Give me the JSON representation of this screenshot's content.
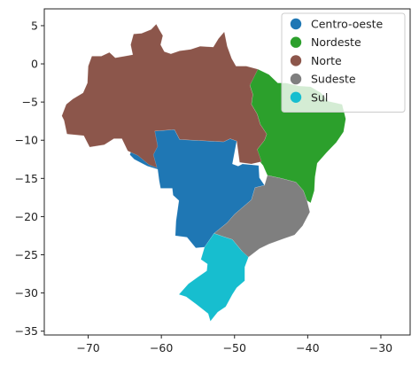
{
  "chart_data": {
    "type": "map",
    "title": "",
    "xlabel": "",
    "ylabel": "",
    "xlim": [
      -76,
      -26
    ],
    "ylim": [
      -35.5,
      7.2
    ],
    "x_ticks": [
      -70,
      -60,
      -50,
      -40,
      -30
    ],
    "y_ticks": [
      5,
      0,
      -5,
      -10,
      -15,
      -20,
      -25,
      -30,
      -35
    ],
    "x_tick_labels": [
      "−70",
      "−60",
      "−50",
      "−40",
      "−30"
    ],
    "y_tick_labels": [
      "5",
      "0",
      "−5",
      "−10",
      "−15",
      "−20",
      "−25",
      "−30",
      "−35"
    ],
    "grid": false,
    "legend_position": "top-right",
    "regions": [
      {
        "name": "Centro-oeste",
        "color": "#1f77b4",
        "polygons": [
          [
            [
              -60.9,
              -8.8
            ],
            [
              -58.2,
              -8.6
            ],
            [
              -57.5,
              -9.9
            ],
            [
              -51.5,
              -10.2
            ],
            [
              -50.6,
              -9.8
            ],
            [
              -49.7,
              -10.1
            ],
            [
              -50.3,
              -13.1
            ],
            [
              -49.5,
              -13.4
            ],
            [
              -48.9,
              -13.1
            ],
            [
              -46.7,
              -13.3
            ],
            [
              -46.6,
              -14.9
            ],
            [
              -45.9,
              -15.9
            ],
            [
              -47.2,
              -16.2
            ],
            [
              -47.7,
              -17.8
            ],
            [
              -50.0,
              -19.7
            ],
            [
              -51.0,
              -20.8
            ],
            [
              -52.8,
              -22.2
            ],
            [
              -54.1,
              -24.0
            ],
            [
              -55.3,
              -24.1
            ],
            [
              -56.5,
              -22.7
            ],
            [
              -58.1,
              -22.5
            ],
            [
              -58.0,
              -20.6
            ],
            [
              -57.6,
              -17.9
            ],
            [
              -58.4,
              -17.2
            ],
            [
              -58.5,
              -16.3
            ],
            [
              -60.1,
              -16.3
            ],
            [
              -60.3,
              -15.3
            ],
            [
              -60.5,
              -13.8
            ],
            [
              -61.9,
              -13.4
            ],
            [
              -62.7,
              -13.0
            ],
            [
              -63.7,
              -12.5
            ],
            [
              -64.3,
              -11.9
            ],
            [
              -63.8,
              -10.5
            ],
            [
              -62.5,
              -10.0
            ],
            [
              -61.7,
              -9.5
            ]
          ]
        ]
      },
      {
        "name": "Nordeste",
        "color": "#2ca02c",
        "polygons": [
          [
            [
              -48.3,
              -1.0
            ],
            [
              -46.8,
              -0.7
            ],
            [
              -45.3,
              -1.4
            ],
            [
              -44.1,
              -2.5
            ],
            [
              -43.0,
              -2.5
            ],
            [
              -41.2,
              -2.9
            ],
            [
              -39.6,
              -3.0
            ],
            [
              -38.2,
              -3.8
            ],
            [
              -37.2,
              -4.9
            ],
            [
              -35.3,
              -5.3
            ],
            [
              -34.8,
              -7.2
            ],
            [
              -35.1,
              -8.9
            ],
            [
              -36.1,
              -10.3
            ],
            [
              -37.4,
              -11.6
            ],
            [
              -38.7,
              -13.0
            ],
            [
              -39.0,
              -14.8
            ],
            [
              -39.1,
              -16.6
            ],
            [
              -39.6,
              -18.2
            ],
            [
              -40.1,
              -17.9
            ],
            [
              -40.6,
              -16.6
            ],
            [
              -41.6,
              -15.5
            ],
            [
              -43.6,
              -15.0
            ],
            [
              -45.5,
              -14.6
            ],
            [
              -46.1,
              -13.3
            ],
            [
              -46.7,
              -12.6
            ],
            [
              -46.9,
              -11.2
            ],
            [
              -45.9,
              -10.0
            ],
            [
              -45.6,
              -9.2
            ],
            [
              -46.5,
              -7.9
            ],
            [
              -46.9,
              -6.6
            ],
            [
              -47.7,
              -5.3
            ],
            [
              -47.5,
              -4.0
            ],
            [
              -47.9,
              -2.8
            ]
          ]
        ]
      },
      {
        "name": "Norte",
        "color": "#8c564b",
        "polygons": [
          [
            [
              -73.3,
              -7.4
            ],
            [
              -72.9,
              -9.2
            ],
            [
              -70.6,
              -9.4
            ],
            [
              -69.8,
              -10.9
            ],
            [
              -67.8,
              -10.6
            ],
            [
              -66.5,
              -9.8
            ],
            [
              -65.4,
              -9.8
            ],
            [
              -64.6,
              -11.4
            ],
            [
              -63.2,
              -12.0
            ],
            [
              -61.7,
              -13.2
            ],
            [
              -60.6,
              -13.6
            ],
            [
              -61.1,
              -11.9
            ],
            [
              -60.5,
              -10.8
            ],
            [
              -60.9,
              -8.8
            ],
            [
              -58.2,
              -8.6
            ],
            [
              -57.5,
              -9.9
            ],
            [
              -51.5,
              -10.2
            ],
            [
              -50.6,
              -9.8
            ],
            [
              -49.7,
              -10.1
            ],
            [
              -49.3,
              -12.9
            ],
            [
              -47.7,
              -13.1
            ],
            [
              -46.3,
              -12.8
            ],
            [
              -46.9,
              -11.2
            ],
            [
              -45.9,
              -10.0
            ],
            [
              -45.6,
              -9.2
            ],
            [
              -46.5,
              -7.9
            ],
            [
              -46.9,
              -6.6
            ],
            [
              -47.7,
              -5.3
            ],
            [
              -47.5,
              -4.0
            ],
            [
              -47.9,
              -2.8
            ],
            [
              -46.8,
              -0.7
            ],
            [
              -48.4,
              -0.3
            ],
            [
              -49.8,
              -0.3
            ],
            [
              -50.4,
              0.7
            ],
            [
              -51.0,
              2.3
            ],
            [
              -51.4,
              4.2
            ],
            [
              -52.2,
              3.3
            ],
            [
              -52.9,
              2.2
            ],
            [
              -54.7,
              2.3
            ],
            [
              -56.0,
              1.9
            ],
            [
              -57.5,
              1.7
            ],
            [
              -58.7,
              1.3
            ],
            [
              -59.6,
              1.6
            ],
            [
              -60.1,
              2.5
            ],
            [
              -59.8,
              3.7
            ],
            [
              -60.3,
              4.5
            ],
            [
              -60.7,
              5.2
            ],
            [
              -61.4,
              4.5
            ],
            [
              -62.7,
              4.0
            ],
            [
              -63.8,
              3.9
            ],
            [
              -64.2,
              2.5
            ],
            [
              -63.9,
              1.2
            ],
            [
              -65.0,
              1.0
            ],
            [
              -66.3,
              0.8
            ],
            [
              -67.1,
              1.5
            ],
            [
              -68.2,
              1.0
            ],
            [
              -69.5,
              1.0
            ],
            [
              -70.0,
              -0.3
            ],
            [
              -70.1,
              -2.5
            ],
            [
              -70.7,
              -3.8
            ],
            [
              -72.1,
              -4.6
            ],
            [
              -73.0,
              -5.3
            ],
            [
              -73.6,
              -6.8
            ]
          ]
        ]
      },
      {
        "name": "Sudeste",
        "color": "#7f7f7f",
        "polygons": [
          [
            [
              -51.0,
              -20.8
            ],
            [
              -50.0,
              -19.7
            ],
            [
              -47.7,
              -17.8
            ],
            [
              -47.2,
              -16.2
            ],
            [
              -45.9,
              -15.9
            ],
            [
              -45.5,
              -14.6
            ],
            [
              -43.6,
              -15.0
            ],
            [
              -41.6,
              -15.5
            ],
            [
              -40.6,
              -16.6
            ],
            [
              -40.1,
              -17.9
            ],
            [
              -39.7,
              -19.4
            ],
            [
              -40.7,
              -21.2
            ],
            [
              -41.8,
              -22.4
            ],
            [
              -43.3,
              -22.9
            ],
            [
              -45.3,
              -23.6
            ],
            [
              -46.6,
              -24.2
            ],
            [
              -48.1,
              -25.3
            ],
            [
              -48.6,
              -25.0
            ],
            [
              -49.0,
              -24.5
            ],
            [
              -50.3,
              -23.0
            ],
            [
              -51.6,
              -22.6
            ],
            [
              -52.8,
              -22.2
            ]
          ]
        ]
      },
      {
        "name": "Sul",
        "color": "#17becf",
        "polygons": [
          [
            [
              -54.1,
              -24.0
            ],
            [
              -52.8,
              -22.2
            ],
            [
              -51.6,
              -22.6
            ],
            [
              -50.3,
              -23.0
            ],
            [
              -49.0,
              -24.5
            ],
            [
              -48.1,
              -25.3
            ],
            [
              -48.6,
              -26.6
            ],
            [
              -48.6,
              -28.4
            ],
            [
              -49.7,
              -29.3
            ],
            [
              -50.3,
              -30.2
            ],
            [
              -51.2,
              -31.8
            ],
            [
              -52.3,
              -32.5
            ],
            [
              -53.3,
              -33.7
            ],
            [
              -53.6,
              -32.7
            ],
            [
              -55.2,
              -31.5
            ],
            [
              -56.6,
              -30.5
            ],
            [
              -57.6,
              -30.2
            ],
            [
              -56.3,
              -28.8
            ],
            [
              -55.0,
              -27.9
            ],
            [
              -53.8,
              -27.1
            ],
            [
              -53.7,
              -26.2
            ],
            [
              -54.6,
              -25.6
            ]
          ]
        ]
      }
    ]
  }
}
